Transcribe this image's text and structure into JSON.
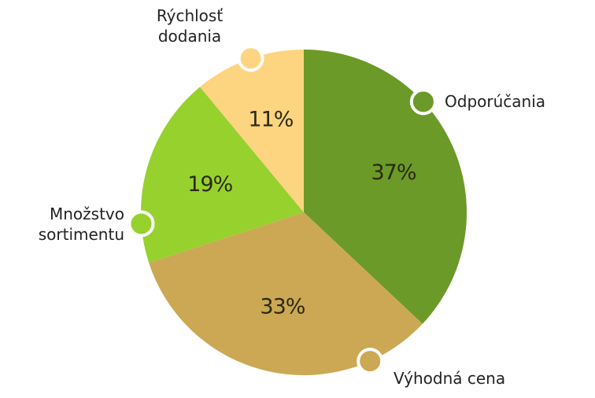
{
  "chart_data": {
    "type": "pie",
    "categories": [
      "Odporúčania",
      "Výhodná cena",
      "Množstvo sortimentu",
      "Rýchlosť dodania"
    ],
    "values": [
      37,
      33,
      19,
      11
    ],
    "value_labels": [
      "37%",
      "33%",
      "19%",
      "11%"
    ],
    "colors": [
      "#6b9a28",
      "#cca855",
      "#96d12e",
      "#fdd47f"
    ]
  }
}
